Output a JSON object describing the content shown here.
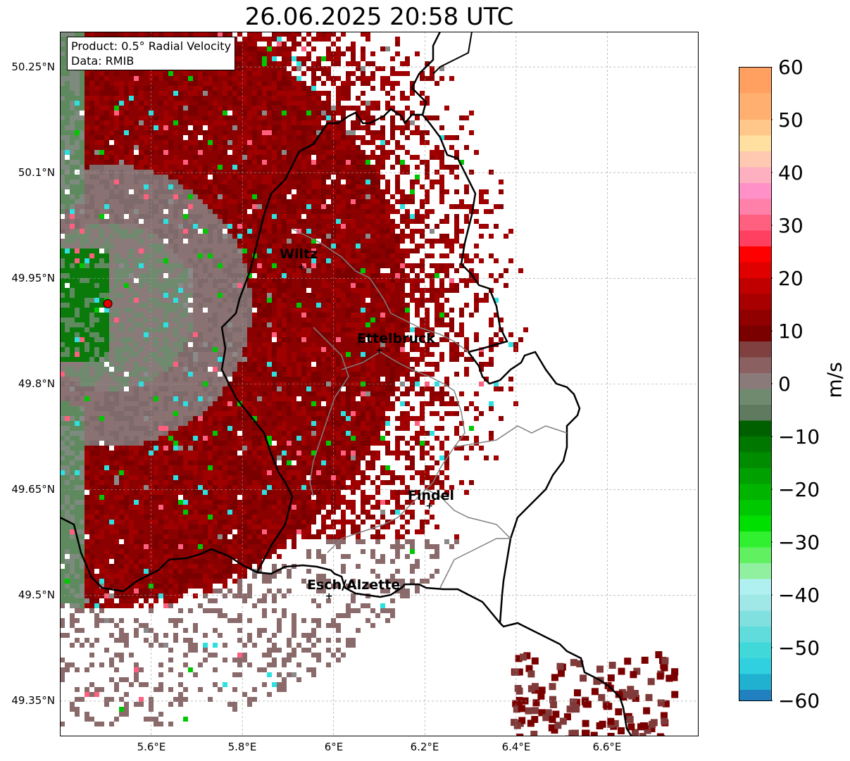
{
  "title": "26.06.2025 20:58 UTC",
  "info_box": {
    "product": "Product: 0.5° Radial Velocity",
    "data": "Data: RMIB"
  },
  "map": {
    "extent_lon": [
      5.4,
      6.8
    ],
    "extent_lat": [
      49.3,
      50.3
    ],
    "lat_ticks": [
      "50.25°N",
      "50.1°N",
      "49.95°N",
      "49.8°N",
      "49.65°N",
      "49.5°N",
      "49.35°N"
    ],
    "lon_ticks": [
      "5.6°E",
      "5.8°E",
      "6°E",
      "6.2°E",
      "6.4°E",
      "6.6°E"
    ],
    "radar_site": {
      "lon": 5.505,
      "lat": 49.914
    },
    "cities": [
      {
        "name": "Wiltz",
        "lon": 5.93,
        "lat": 49.966
      },
      {
        "name": "Ettelbruck",
        "lon": 6.1,
        "lat": 49.848
      },
      {
        "name": "Findel",
        "lon": 6.21,
        "lat": 49.627
      },
      {
        "name": "Esch/Alzette",
        "lon": 5.99,
        "lat": 49.499
      }
    ]
  },
  "colorbar": {
    "label": "m/s",
    "min": -60,
    "max": 60,
    "ticks": [
      "60",
      "50",
      "40",
      "30",
      "20",
      "10",
      "0",
      "−10",
      "−20",
      "−30",
      "−40",
      "−50",
      "−60"
    ]
  },
  "colors": {
    "inbound_strong": "#2e86c1",
    "inbound_cyan": "#2ee0e0",
    "inbound_green": "#00c800",
    "near_zero_green": "#5f8a5f",
    "near_zero_grey": "#8a7a7a",
    "outbound_dark": "#7a0000",
    "outbound_red": "#e00000",
    "outbound_pink": "#ff6080",
    "outbound_peach": "#ffa060"
  }
}
